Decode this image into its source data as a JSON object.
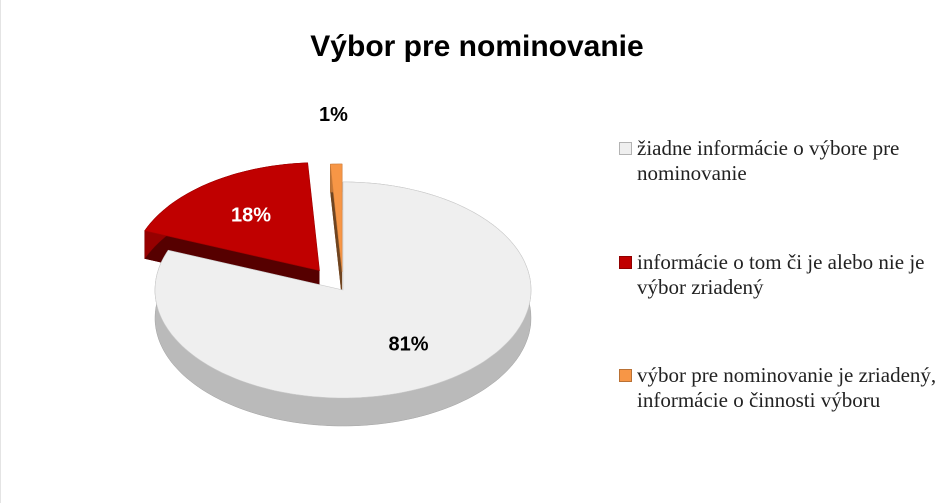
{
  "chart_data": {
    "type": "pie",
    "title": "Výbor pre nominovanie",
    "categories": [
      "žiadne informácie o výbore pre nominovanie",
      "informácie o tom či je alebo nie je výbor zriadený",
      "výbor pre nominovanie je zriadený, informácie o činnosti výboru"
    ],
    "values": [
      81,
      18,
      1
    ],
    "value_labels": [
      "81%",
      "18%",
      "1%"
    ],
    "colors": [
      "#efefef",
      "#c00000",
      "#f79646"
    ],
    "legend": "right"
  }
}
